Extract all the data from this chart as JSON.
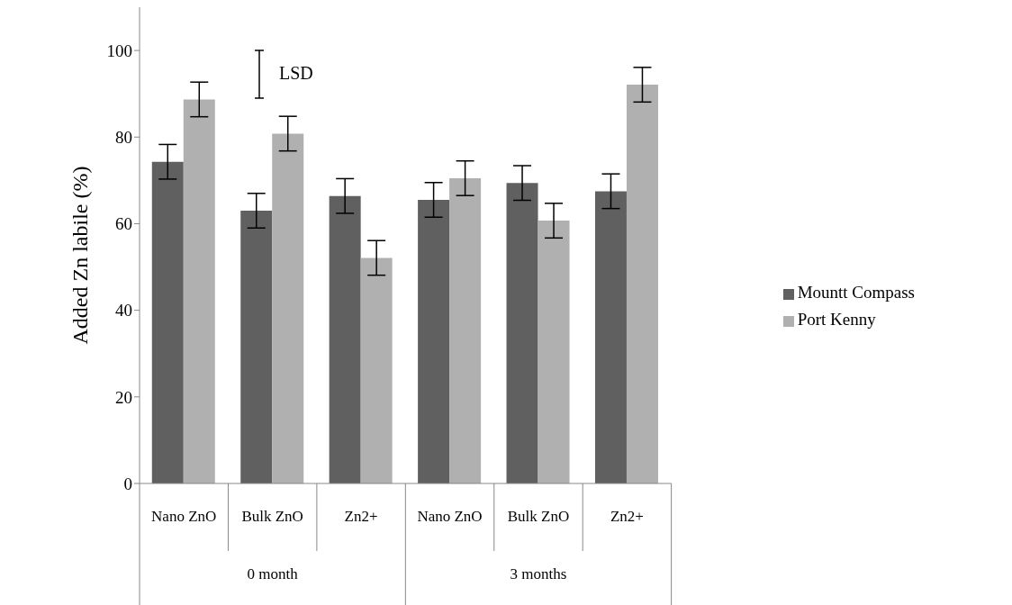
{
  "chart_data": {
    "type": "bar",
    "ylabel": "Added Zn labile (%)",
    "categories": [
      "Nano ZnO",
      "Bulk ZnO",
      "Zn2+",
      "Nano ZnO",
      "Bulk ZnO",
      "Zn2+"
    ],
    "series": [
      {
        "name": "Mountt Compass",
        "color": "#606060",
        "values": [
          74.3,
          63.0,
          66.4,
          65.5,
          69.4,
          67.5
        ],
        "errors": [
          4,
          4,
          4,
          4,
          4,
          4
        ]
      },
      {
        "name": "Port Kenny",
        "color": "#b0b0b0",
        "values": [
          88.7,
          80.8,
          52.1,
          70.5,
          60.7,
          92.1
        ],
        "errors": [
          4,
          4,
          4,
          4,
          4,
          4
        ]
      }
    ],
    "ylim": [
      0,
      110
    ],
    "yticks": [
      0,
      20,
      40,
      60,
      80,
      100
    ],
    "legend": "right",
    "annotations": [
      "LSD",
      "0 month",
      "3 months"
    ]
  }
}
